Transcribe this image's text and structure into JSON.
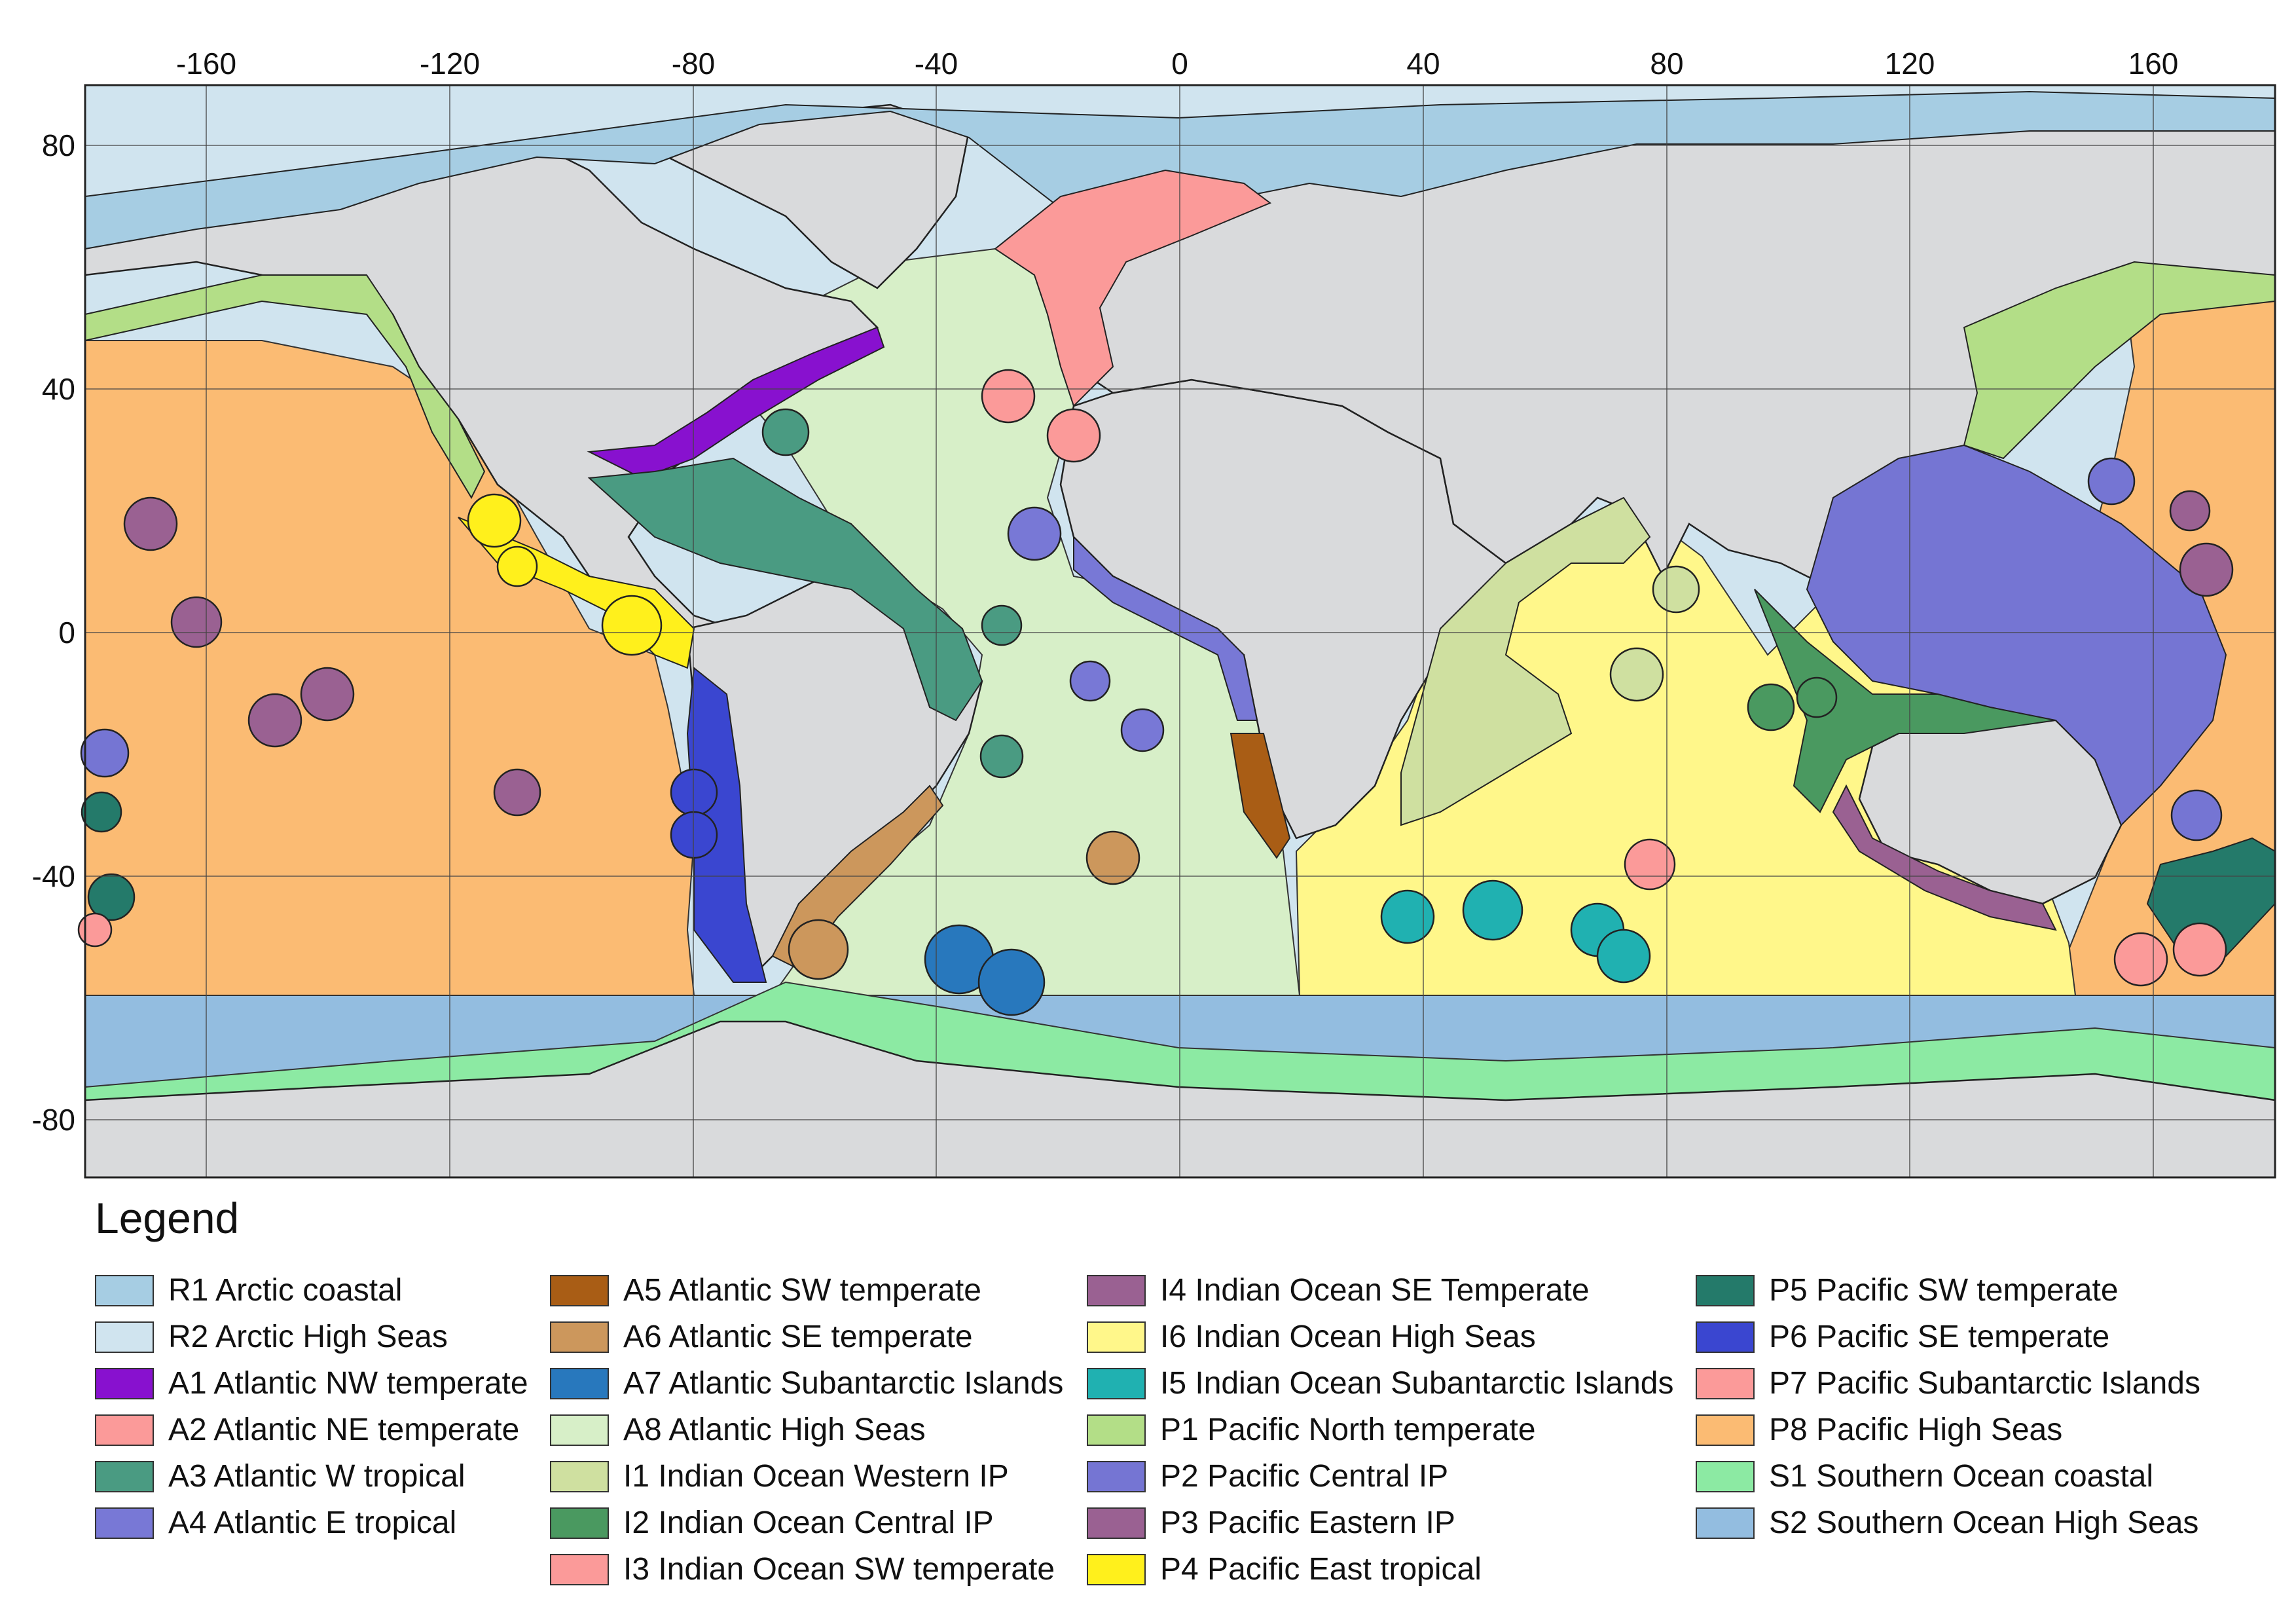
{
  "map": {
    "lon_ticks": [
      "-160",
      "-120",
      "-80",
      "-40",
      "0",
      "40",
      "80",
      "120",
      "160"
    ],
    "lat_ticks": [
      "80",
      "40",
      "0",
      "-40",
      "-80"
    ],
    "colors": {
      "ocean_ar": "#d0e4ef",
      "land": "#d9dadc",
      "antarctic_coast": "#8ceaa3",
      "southern_high": "#93bde0",
      "pacific_high": "#fbbb73",
      "atlantic_high": "#d7efc8",
      "indian_high": "#fff78a"
    }
  },
  "legend": {
    "title": "Legend",
    "columns": [
      [
        {
          "label": "R1 Arctic coastal",
          "color": "#a6cde3"
        },
        {
          "label": "R2 Arctic High Seas",
          "color": "#d0e4ef"
        },
        {
          "label": "A1 Atlantic NW temperate",
          "color": "#8811cf"
        },
        {
          "label": "A2 Atlantic NE temperate",
          "color": "#fb9a99"
        },
        {
          "label": "A3 Atlantic W tropical",
          "color": "#4a9b82"
        },
        {
          "label": "A4 Atlantic E tropical",
          "color": "#7878d6"
        }
      ],
      [
        {
          "label": "A5 Atlantic SW temperate",
          "color": "#a95d15"
        },
        {
          "label": "A6 Atlantic SE temperate",
          "color": "#cc975c"
        },
        {
          "label": "A7 Atlantic Subantarctic Islands",
          "color": "#2878bd"
        },
        {
          "label": "A8 Atlantic High Seas",
          "color": "#d7efc8"
        },
        {
          "label": "I1 Indian Ocean Western IP",
          "color": "#cfe0a0"
        },
        {
          "label": "I2 Indian Ocean Central IP",
          "color": "#4a9960"
        },
        {
          "label": "I3 Indian Ocean SW temperate",
          "color": "#fb9a99"
        }
      ],
      [
        {
          "label": "I4 Indian Ocean SE Temperate",
          "color": "#9a6192"
        },
        {
          "label": "I6 Indian Ocean High Seas",
          "color": "#fff78a"
        },
        {
          "label": "I5 Indian Ocean Subantarctic Islands",
          "color": "#20b1b1"
        },
        {
          "label": "P1 Pacific North temperate",
          "color": "#b3de87"
        },
        {
          "label": "P2 Pacific Central IP",
          "color": "#7575d3"
        },
        {
          "label": "P3 Pacific Eastern IP",
          "color": "#9a6192"
        },
        {
          "label": "P4 Pacific East tropical",
          "color": "#fff01c"
        }
      ],
      [
        {
          "label": "P5 Pacific SW temperate",
          "color": "#247a6a"
        },
        {
          "label": "P6 Pacific SE temperate",
          "color": "#3a46d0"
        },
        {
          "label": "P7 Pacific Subantarctic Islands",
          "color": "#fb9a99"
        },
        {
          "label": "P8 Pacific High Seas",
          "color": "#fbbb73"
        },
        {
          "label": "S1 Southern Ocean coastal",
          "color": "#8ceaa3"
        },
        {
          "label": "S2 Southern Ocean High Seas",
          "color": "#93bde0"
        }
      ]
    ]
  }
}
